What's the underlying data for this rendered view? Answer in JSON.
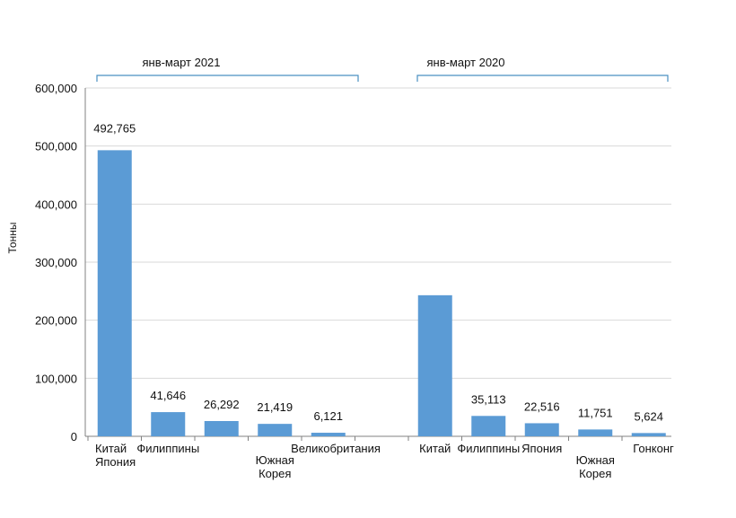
{
  "chart_data": {
    "type": "bar",
    "title": "",
    "xlabel": "",
    "ylabel": "Тонны",
    "ylim": [
      0,
      600000
    ],
    "yticks": [
      "0",
      "100,000",
      "200,000",
      "300,000",
      "400,000",
      "500,000",
      "600,000"
    ],
    "ytick_values": [
      0,
      100000,
      200000,
      300000,
      400000,
      500000,
      600000
    ],
    "grid": true,
    "bar_color": "#5b9bd5",
    "groups": [
      {
        "label": "янв-март 2021",
        "bars": [
          {
            "category": [
              "Китай",
              "Япония"
            ],
            "value": 492765,
            "label": "492,765"
          },
          {
            "category": [
              "Филиппины"
            ],
            "value": 41646,
            "label": "41,646"
          },
          {
            "category": [],
            "value": 26292,
            "label": "26,292"
          },
          {
            "category": [
              "Южная",
              "Корея"
            ],
            "value": 21419,
            "label": "21,419"
          },
          {
            "category": [
              "Великобритания"
            ],
            "value": 6121,
            "label": "6,121"
          }
        ]
      },
      {
        "label": "янв-март 2020",
        "bars": [
          {
            "category": [
              "Китай"
            ],
            "value": 243000,
            "label": ""
          },
          {
            "category": [
              "Филиппины"
            ],
            "value": 35113,
            "label": "35,113"
          },
          {
            "category": [
              "Япония"
            ],
            "value": 22516,
            "label": "22,516"
          },
          {
            "category": [
              "Южная",
              "Корея"
            ],
            "value": 11751,
            "label": "11,751"
          },
          {
            "category": [
              "Гонконг"
            ],
            "value": 5624,
            "label": "5,624"
          }
        ]
      }
    ]
  }
}
